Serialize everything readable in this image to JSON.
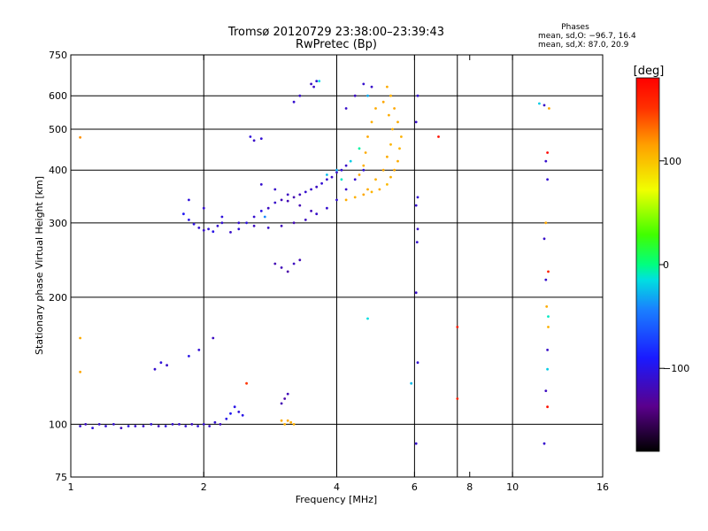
{
  "chart_data": {
    "type": "scatter",
    "title": "Tromsø 20120729 23:38:00–23:39:43",
    "subtitle": "RwPretec (Bp)",
    "xlabel": "Frequency [MHz]",
    "ylabel": "Stationary phase Virtual Height [km]",
    "x_scale": "log",
    "y_scale": "log",
    "xlim": [
      1,
      16
    ],
    "ylim": [
      75,
      750
    ],
    "x_ticks": [
      1,
      2,
      4,
      6,
      8,
      10,
      16
    ],
    "x_tick_labels": [
      "1",
      "2",
      "4",
      "6",
      "8",
      "10",
      "16"
    ],
    "x_grid": [
      2,
      4,
      6,
      7.5,
      10
    ],
    "y_ticks": [
      75,
      100,
      200,
      300,
      400,
      500,
      600,
      750
    ],
    "y_tick_labels": [
      "75",
      "100",
      "200",
      "300",
      "400",
      "500",
      "600",
      "750"
    ],
    "grid": true,
    "stats": {
      "heading": "Phases",
      "line_o": "mean, sd,O: −96.7, 16.4",
      "line_x": "mean, sd,X:  87.0, 20.9"
    },
    "colorbar": {
      "label": "[deg]",
      "range": [
        -180,
        180
      ],
      "tick_values": [
        100,
        0,
        -100
      ],
      "tick_labels": [
        "100",
        "0",
        "−100"
      ]
    },
    "series": [
      {
        "points": [
          [
            1.05,
            99,
            -110
          ],
          [
            1.08,
            100,
            -115
          ],
          [
            1.12,
            98,
            -105
          ],
          [
            1.16,
            100,
            -112
          ],
          [
            1.2,
            99,
            -108
          ],
          [
            1.25,
            100,
            -110
          ],
          [
            1.3,
            98,
            -118
          ],
          [
            1.35,
            99,
            -104
          ],
          [
            1.4,
            99,
            -110
          ],
          [
            1.46,
            99,
            -112
          ],
          [
            1.52,
            100,
            -108
          ],
          [
            1.58,
            99,
            -115
          ],
          [
            1.64,
            99,
            -105
          ],
          [
            1.7,
            100,
            -110
          ],
          [
            1.76,
            100,
            -112
          ],
          [
            1.82,
            99,
            -108
          ],
          [
            1.88,
            100,
            -114
          ],
          [
            1.94,
            99,
            -106
          ],
          [
            2,
            100,
            -110
          ],
          [
            2.06,
            99,
            -112
          ],
          [
            2.12,
            101,
            -108
          ],
          [
            2.18,
            100,
            -115
          ],
          [
            2.25,
            103,
            -100
          ],
          [
            2.3,
            106,
            -95
          ],
          [
            2.35,
            110,
            -100
          ],
          [
            2.4,
            107,
            -105
          ],
          [
            2.45,
            105,
            -100
          ],
          [
            1.55,
            135,
            -110
          ],
          [
            1.6,
            140,
            -105
          ],
          [
            1.65,
            138,
            -112
          ],
          [
            1.85,
            145,
            -100
          ],
          [
            1.95,
            150,
            -108
          ],
          [
            2.1,
            160,
            -115
          ],
          [
            1.8,
            315,
            -95
          ],
          [
            1.85,
            305,
            -100
          ],
          [
            1.9,
            298,
            -105
          ],
          [
            1.95,
            292,
            -110
          ],
          [
            2.0,
            288,
            -112
          ],
          [
            2.05,
            290,
            -105
          ],
          [
            2.1,
            286,
            -100
          ],
          [
            2.15,
            295,
            -110
          ],
          [
            2.2,
            300,
            -108
          ],
          [
            2.3,
            285,
            -112
          ],
          [
            2.4,
            290,
            -106
          ],
          [
            2.5,
            300,
            -104
          ],
          [
            2.6,
            310,
            -110
          ],
          [
            2.7,
            320,
            -100
          ],
          [
            2.8,
            325,
            -115
          ],
          [
            2.9,
            335,
            -112
          ],
          [
            3.0,
            340,
            -118
          ],
          [
            3.1,
            338,
            -120
          ],
          [
            3.2,
            345,
            -122
          ],
          [
            3.3,
            350,
            -118
          ],
          [
            3.4,
            355,
            -110
          ],
          [
            3.5,
            360,
            -112
          ],
          [
            3.6,
            365,
            -115
          ],
          [
            3.7,
            372,
            -108
          ],
          [
            3.8,
            380,
            -110
          ],
          [
            3.9,
            385,
            -112
          ],
          [
            4.0,
            395,
            -115
          ],
          [
            4.1,
            400,
            -108
          ],
          [
            4.2,
            410,
            -112
          ],
          [
            1.85,
            340,
            -105
          ],
          [
            2.0,
            325,
            -110
          ],
          [
            2.2,
            310,
            -105
          ],
          [
            2.4,
            300,
            -110
          ],
          [
            2.6,
            295,
            -115
          ],
          [
            2.8,
            292,
            -112
          ],
          [
            3.0,
            295,
            -118
          ],
          [
            3.2,
            300,
            -120
          ],
          [
            3.4,
            305,
            -116
          ],
          [
            3.6,
            315,
            -112
          ],
          [
            3.8,
            325,
            -110
          ],
          [
            4.0,
            340,
            -108
          ],
          [
            4.2,
            360,
            -112
          ],
          [
            4.4,
            380,
            -110
          ],
          [
            4.6,
            400,
            -106
          ],
          [
            2.7,
            370,
            -110
          ],
          [
            2.9,
            360,
            -112
          ],
          [
            3.1,
            350,
            -115
          ],
          [
            3.3,
            330,
            -120
          ],
          [
            3.5,
            320,
            -118
          ],
          [
            2.9,
            240,
            -120
          ],
          [
            3.0,
            235,
            -118
          ],
          [
            3.1,
            230,
            -125
          ],
          [
            3.2,
            240,
            -116
          ],
          [
            3.3,
            245,
            -120
          ],
          [
            2.55,
            480,
            -105
          ],
          [
            2.6,
            470,
            -112
          ],
          [
            2.7,
            475,
            -108
          ],
          [
            3.2,
            580,
            -110
          ],
          [
            3.3,
            600,
            -112
          ],
          [
            3.5,
            640,
            -115
          ],
          [
            3.55,
            630,
            -112
          ],
          [
            3.6,
            650,
            -108
          ],
          [
            4.6,
            640,
            -110
          ],
          [
            4.8,
            630,
            -112
          ],
          [
            4.4,
            600,
            -115
          ],
          [
            4.2,
            560,
            -112
          ],
          [
            3.0,
            112,
            -120
          ],
          [
            3.05,
            115,
            -125
          ],
          [
            3.1,
            118,
            -118
          ],
          [
            6.1,
            600,
            -110
          ],
          [
            6.05,
            520,
            -112
          ],
          [
            6.1,
            345,
            -108
          ],
          [
            6.05,
            330,
            -110
          ],
          [
            6.1,
            290,
            -112
          ],
          [
            6.08,
            270,
            -110
          ],
          [
            6.05,
            205,
            -112
          ],
          [
            6.1,
            140,
            -108
          ],
          [
            6.05,
            90,
            -110
          ],
          [
            11.8,
            90,
            -110
          ],
          [
            11.9,
            120,
            -115
          ],
          [
            12,
            150,
            -112
          ],
          [
            11.9,
            220,
            -110
          ],
          [
            11.8,
            275,
            -112
          ],
          [
            12,
            380,
            -108
          ],
          [
            11.9,
            420,
            -110
          ],
          [
            11.8,
            570,
            -112
          ]
        ]
      },
      {
        "points": [
          [
            4.2,
            340,
            110
          ],
          [
            4.4,
            345,
            108
          ],
          [
            4.6,
            350,
            112
          ],
          [
            4.8,
            355,
            106
          ],
          [
            5.0,
            360,
            110
          ],
          [
            5.2,
            370,
            104
          ],
          [
            5.3,
            385,
            108
          ],
          [
            5.4,
            400,
            112
          ],
          [
            5.5,
            420,
            110
          ],
          [
            5.55,
            450,
            106
          ],
          [
            5.6,
            480,
            108
          ],
          [
            5.5,
            520,
            110
          ],
          [
            5.4,
            560,
            112
          ],
          [
            5.3,
            600,
            108
          ],
          [
            5.2,
            630,
            110
          ],
          [
            4.7,
            360,
            110
          ],
          [
            4.9,
            380,
            108
          ],
          [
            5.1,
            400,
            112
          ],
          [
            5.2,
            430,
            110
          ],
          [
            5.3,
            460,
            106
          ],
          [
            5.35,
            500,
            108
          ],
          [
            5.25,
            540,
            110
          ],
          [
            5.1,
            580,
            112
          ],
          [
            4.9,
            560,
            110
          ],
          [
            4.8,
            520,
            108
          ],
          [
            4.7,
            480,
            112
          ],
          [
            4.65,
            440,
            110
          ],
          [
            4.6,
            410,
            108
          ],
          [
            4.5,
            390,
            112
          ],
          [
            3.0,
            102,
            110
          ],
          [
            3.05,
            100,
            108
          ],
          [
            3.1,
            102,
            112
          ],
          [
            3.15,
            101,
            110
          ],
          [
            3.2,
            100,
            108
          ],
          [
            1.05,
            478,
            120
          ],
          [
            1.05,
            160,
            110
          ],
          [
            1.05,
            133,
            112
          ],
          [
            12.1,
            560,
            110
          ],
          [
            11.9,
            300,
            112
          ],
          [
            11.95,
            190,
            110
          ],
          [
            12.05,
            170,
            108
          ]
        ]
      },
      {
        "points": [
          [
            4.1,
            380,
            -10
          ],
          [
            4.3,
            420,
            -20
          ],
          [
            4.5,
            450,
            -5
          ],
          [
            4.7,
            600,
            -30
          ],
          [
            3.65,
            650,
            -15
          ],
          [
            12.05,
            180,
            -10
          ],
          [
            12,
            135,
            -20
          ],
          [
            5.9,
            125,
            -25
          ],
          [
            4.7,
            178,
            -15
          ],
          [
            3.8,
            390,
            -25
          ],
          [
            4.0,
            400,
            -30
          ],
          [
            2.75,
            310,
            -40
          ],
          [
            11.5,
            575,
            -20
          ]
        ]
      },
      {
        "points": [
          [
            6.8,
            480,
            170
          ],
          [
            7.5,
            170,
            165
          ],
          [
            7.5,
            115,
            160
          ],
          [
            12,
            110,
            170
          ],
          [
            12,
            440,
            175
          ],
          [
            2.5,
            125,
            150
          ],
          [
            12.05,
            230,
            160
          ]
        ]
      }
    ]
  }
}
